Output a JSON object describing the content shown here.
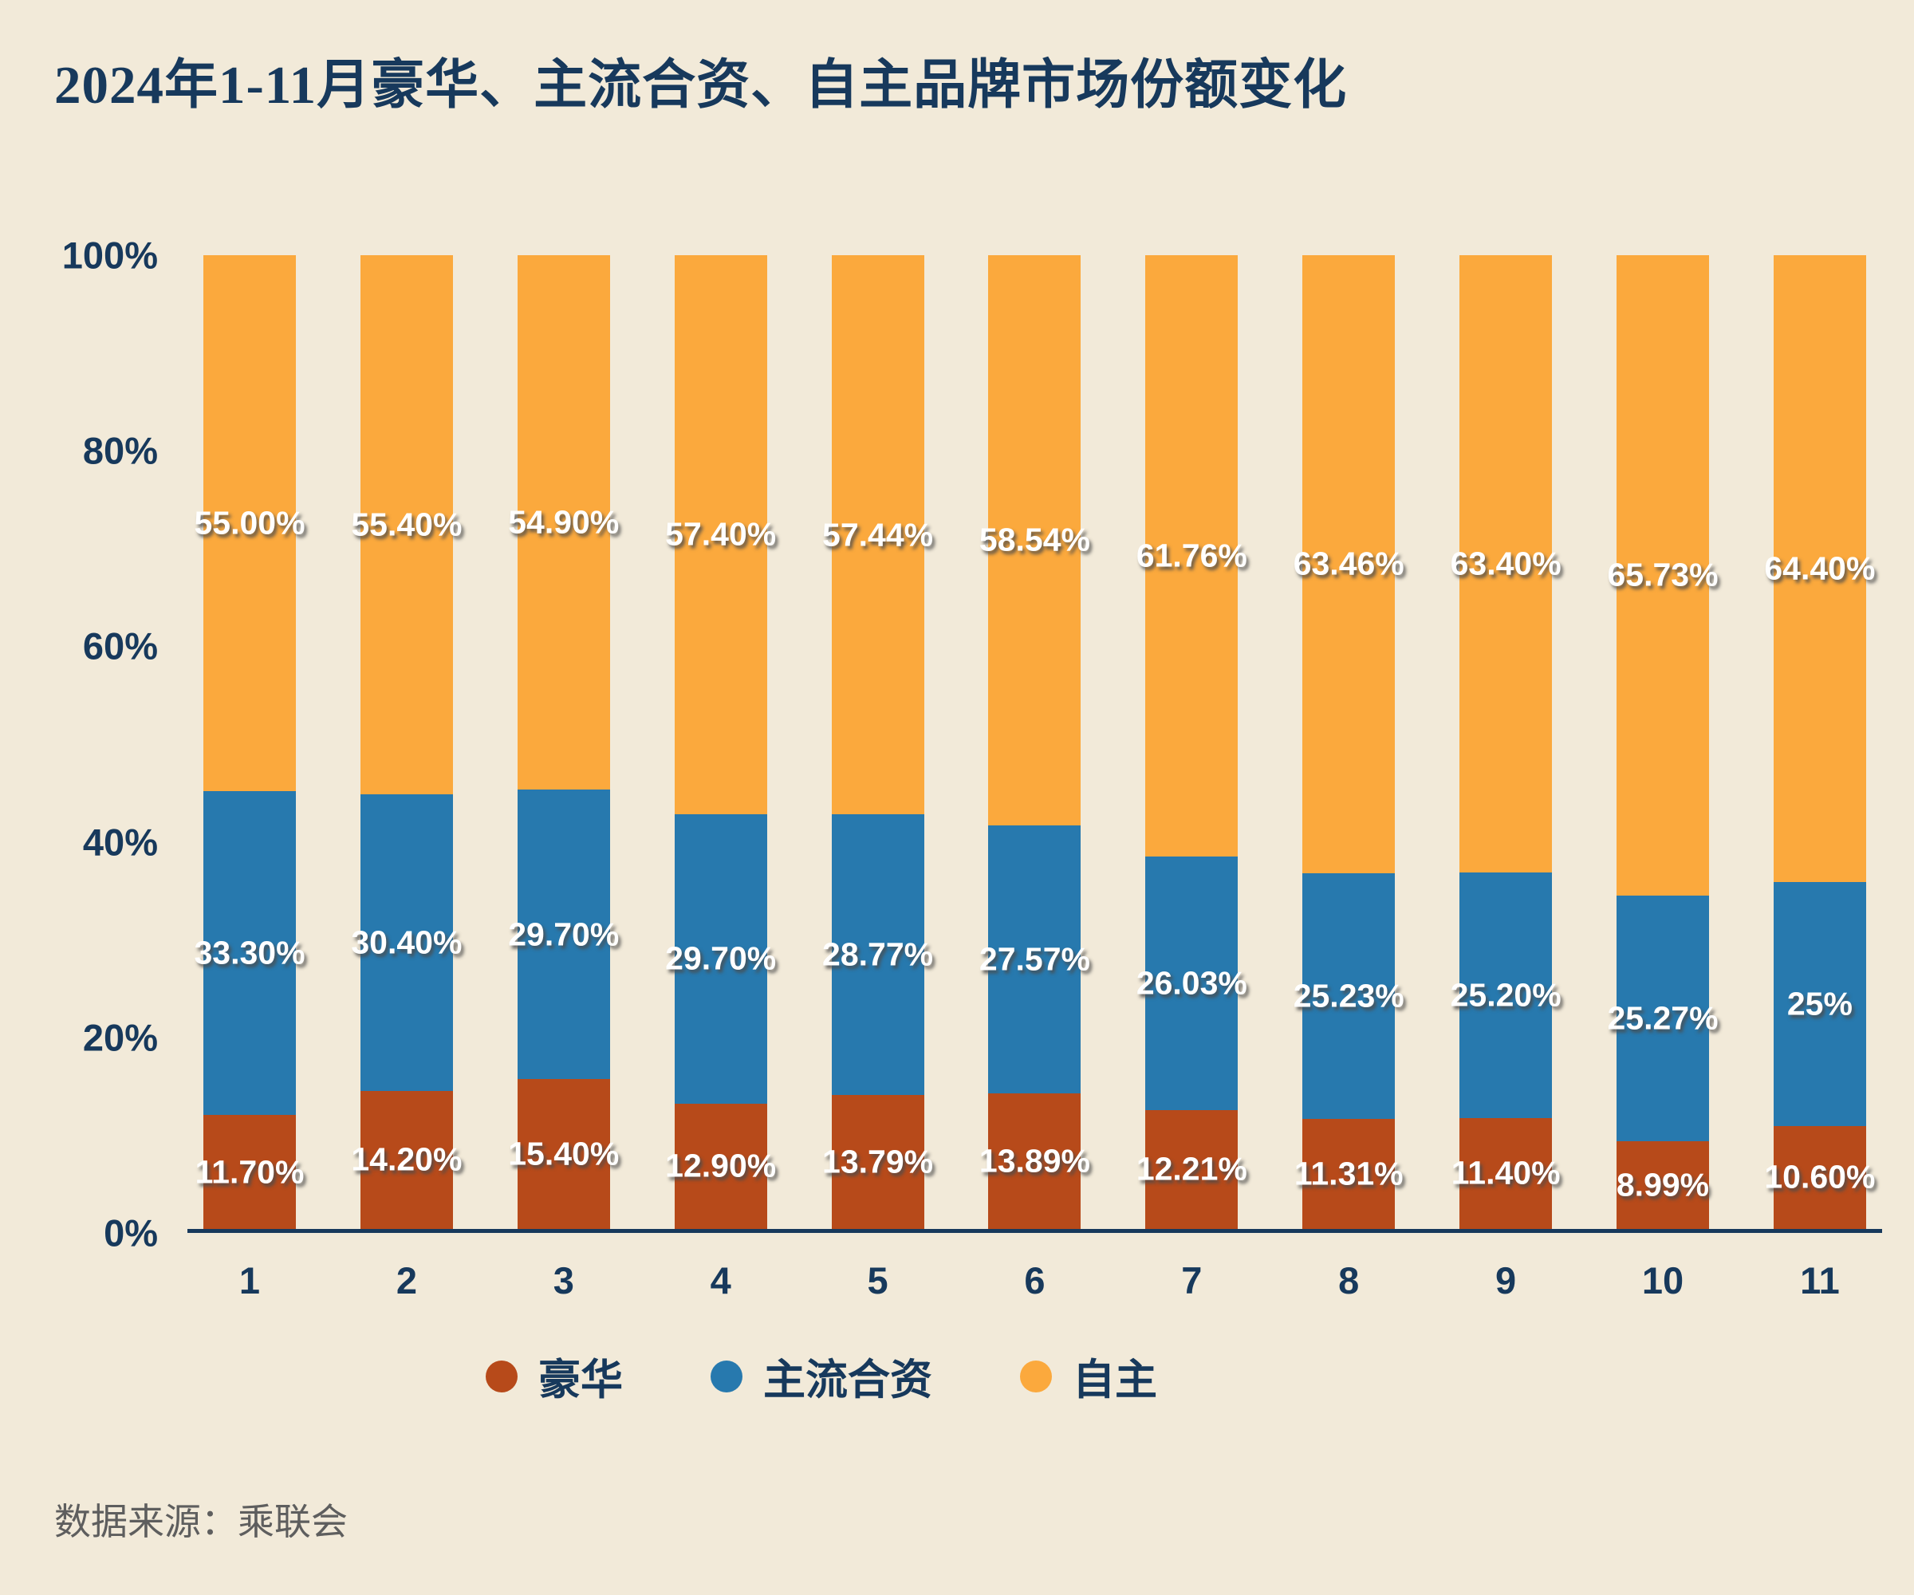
{
  "title": "2024年1-11月豪华、主流合资、自主品牌市场份额变化",
  "source": "数据来源：乘联会",
  "colors": {
    "background": "#f2ead9",
    "text": "#17395c",
    "luxury": "#b74a1a",
    "joint_venture": "#2779ae",
    "domestic": "#fba93d",
    "label_text": "#ffffff"
  },
  "chart_data": {
    "type": "bar",
    "stacked": true,
    "title": "2024年1-11月豪华、主流合资、自主品牌市场份额变化",
    "xlabel": "",
    "ylabel": "",
    "ylim": [
      0,
      100
    ],
    "grid": false,
    "legend_position": "bottom",
    "yticks": [
      "0%",
      "20%",
      "40%",
      "60%",
      "80%",
      "100%"
    ],
    "categories": [
      "1",
      "2",
      "3",
      "4",
      "5",
      "6",
      "7",
      "8",
      "9",
      "10",
      "11"
    ],
    "series": [
      {
        "key": "luxury",
        "name": "豪华",
        "color": "#b74a1a",
        "values": [
          11.7,
          14.2,
          15.4,
          12.9,
          13.79,
          13.89,
          12.21,
          11.31,
          11.4,
          8.99,
          10.6
        ],
        "labels": [
          "11.70%",
          "14.20%",
          "15.40%",
          "12.90%",
          "13.79%",
          "13.89%",
          "12.21%",
          "11.31%",
          "11.40%",
          "8.99%",
          "10.60%"
        ]
      },
      {
        "key": "joint-venture",
        "name": "主流合资",
        "color": "#2779ae",
        "values": [
          33.3,
          30.4,
          29.7,
          29.7,
          28.77,
          27.57,
          26.03,
          25.23,
          25.2,
          25.27,
          25.0
        ],
        "labels": [
          "33.30%",
          "30.40%",
          "29.70%",
          "29.70%",
          "28.77%",
          "27.57%",
          "26.03%",
          "25.23%",
          "25.20%",
          "25.27%",
          "25%"
        ]
      },
      {
        "key": "domestic",
        "name": "自主",
        "color": "#fba93d",
        "values": [
          55.0,
          55.4,
          54.9,
          57.4,
          57.44,
          58.54,
          61.76,
          63.46,
          63.4,
          65.73,
          64.4
        ],
        "labels": [
          "55.00%",
          "55.40%",
          "54.90%",
          "57.40%",
          "57.44%",
          "58.54%",
          "61.76%",
          "63.46%",
          "63.40%",
          "65.73%",
          "64.40%"
        ]
      }
    ]
  }
}
